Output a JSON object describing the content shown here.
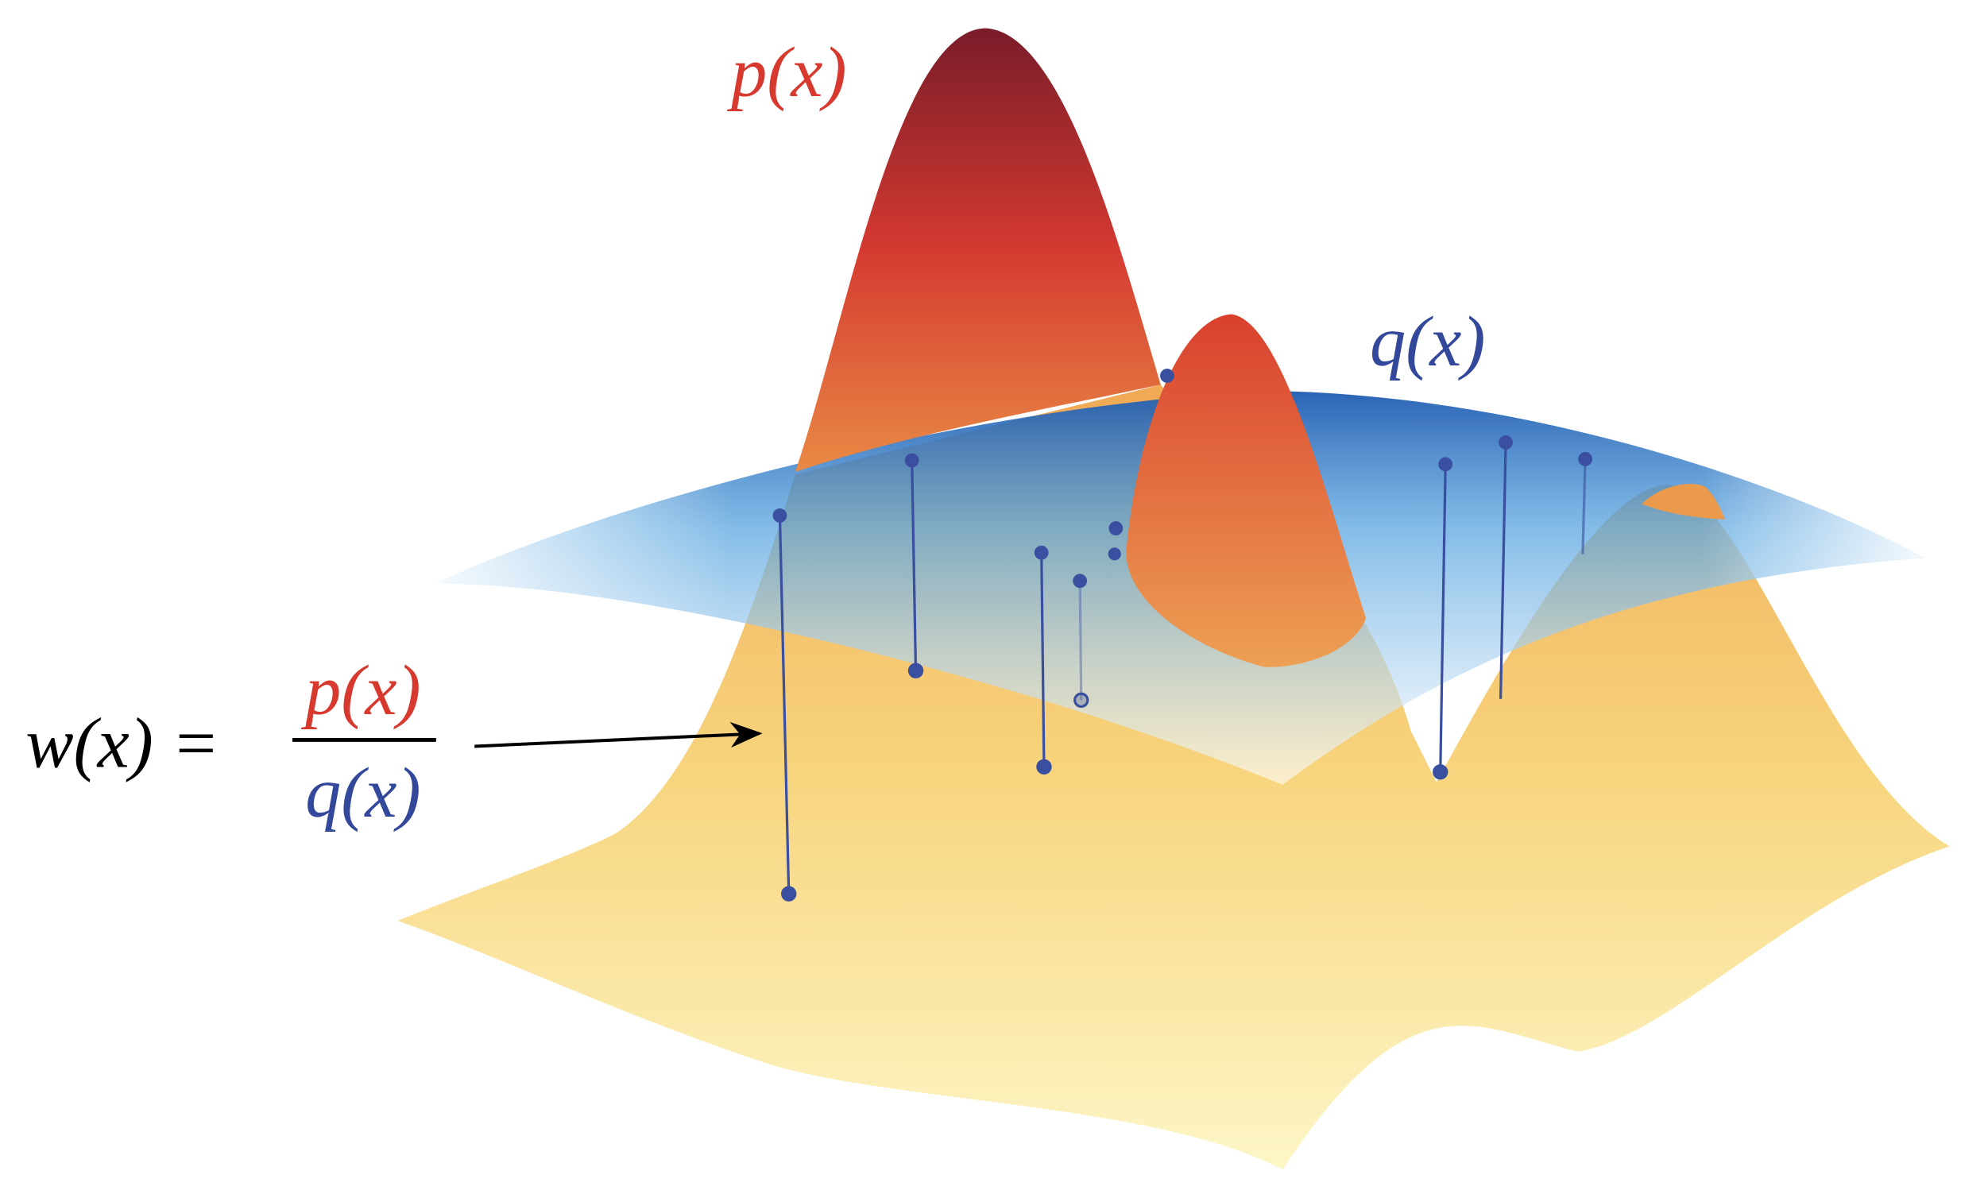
{
  "labels": {
    "p": "p(x)",
    "q": "q(x)"
  },
  "equation": {
    "lhs": "w(x) =",
    "numerator": "p(x)",
    "denominator": "q(x)"
  }
}
